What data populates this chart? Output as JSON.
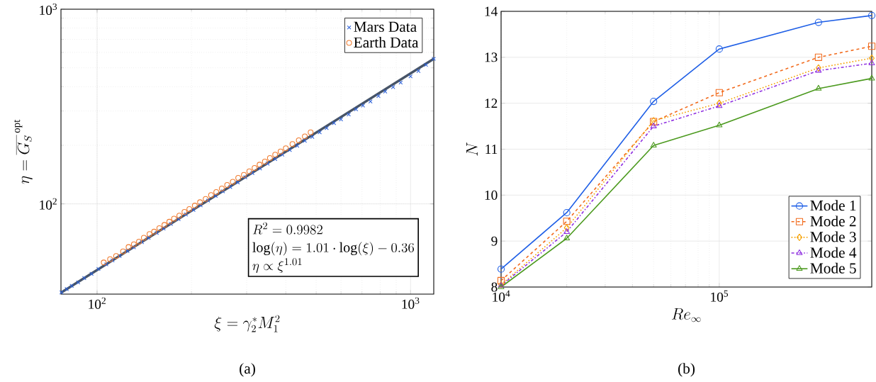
{
  "chart_data": [
    {
      "type": "scatter",
      "log": "xy",
      "grid": true,
      "legend": "top right",
      "xlabel": "\\xi = \\gamma_2^{*} M_1^2",
      "ylabel": "\\eta = \\overline{G_S}^{\\,\\mathrm{opt}}",
      "xlim": [
        76.7,
        1186
      ],
      "ylim": [
        34.4,
        1000
      ],
      "xticks": [
        {
          "value": 100,
          "label": "10$^{2}$"
        },
        {
          "value": 1000,
          "label": "10$^{3}$"
        }
      ],
      "yticks": [
        {
          "value": 100,
          "label": "10$^{2}$"
        },
        {
          "value": 1000,
          "label": "10$^{3}$"
        }
      ],
      "annotations": [
        "R^2 = 0.9982",
        "\\log(\\eta) = 1.01\\cdot\\log(\\xi) - 0.36",
        "\\eta \\propto \\xi^{1.01}",
        "(a)"
      ],
      "series": [
        {
          "name": "Mars Data",
          "type": "scatter",
          "marker": "cross",
          "color": "#2e62d9",
          "x": [
            77,
            80,
            83,
            87,
            91,
            96,
            101,
            107,
            112,
            118,
            125,
            131,
            139,
            146,
            155,
            163,
            172,
            182,
            192,
            203,
            214,
            226,
            239,
            252,
            266,
            281,
            297,
            313,
            331,
            350,
            370,
            390,
            412,
            435,
            460,
            486,
            513,
            540,
            570,
            600,
            635,
            670,
            705,
            745,
            790,
            830,
            880,
            930,
            1000,
            1060,
            1120,
            1186
          ],
          "values": [
            35.1,
            36.5,
            37.9,
            39.5,
            41.6,
            43.7,
            46.3,
            48.9,
            51.2,
            54.0,
            57.3,
            59.8,
            63.6,
            66.9,
            70.9,
            74.8,
            78.9,
            83.5,
            88.2,
            93.2,
            98.4,
            104,
            110,
            116,
            122,
            129,
            137,
            144,
            152,
            161,
            170,
            179,
            189,
            199,
            211,
            221,
            233,
            245,
            260,
            272,
            288,
            306,
            320,
            336,
            358,
            378,
            398,
            420,
            452,
            482,
            518,
            556
          ]
        },
        {
          "name": "Earth Data",
          "type": "scatter",
          "marker": "circle",
          "color": "#f07c30",
          "x": [
            105,
            110,
            115,
            121,
            126,
            131,
            136,
            141,
            147,
            152,
            158,
            164,
            170,
            176,
            183,
            190,
            197,
            205,
            213,
            222,
            231,
            240,
            250,
            260,
            271,
            282,
            294,
            306,
            318,
            330,
            343,
            356,
            370,
            385,
            400,
            420,
            440,
            460,
            480
          ],
          "values": [
            50,
            52,
            54,
            57,
            60,
            62,
            64,
            67,
            70,
            72,
            75,
            78,
            81,
            84,
            87,
            91,
            94,
            98,
            102,
            106,
            111,
            115,
            120,
            125,
            130,
            136,
            141,
            147,
            153,
            159,
            165,
            172,
            179,
            186,
            193,
            203,
            212,
            222,
            233
          ]
        },
        {
          "type": "line",
          "marker": "none",
          "color": "#475467",
          "x": [
            76.7,
            1186
          ],
          "values": [
            35.0,
            556
          ]
        }
      ]
    },
    {
      "type": "line",
      "log": "x",
      "grid": true,
      "legend": "bottom right",
      "xlabel": "Re_{\\infty}",
      "ylabel": "N",
      "x": [
        10000,
        20000,
        50000,
        100000,
        285000,
        500000
      ],
      "xlim": [
        10000,
        500000
      ],
      "ylim": [
        8,
        14
      ],
      "xticks": [
        {
          "value": 10000,
          "label": "10$^{4}$"
        },
        {
          "value": 100000,
          "label": "10$^{5}$"
        }
      ],
      "yticks": [
        8,
        9,
        10,
        11,
        12,
        13,
        14
      ],
      "annotations": [
        "(b)"
      ],
      "series": [
        {
          "name": "Mode 1",
          "color": "#1f5fe6",
          "marker": "circle",
          "line_style": "solid",
          "values": [
            8.39,
            9.62,
            12.04,
            13.18,
            13.76,
            13.91
          ]
        },
        {
          "name": "Mode 2",
          "color": "#f26b1d",
          "marker": "square",
          "line_style": "dashed",
          "values": [
            8.14,
            9.43,
            11.6,
            12.23,
            13.0,
            13.24
          ]
        },
        {
          "name": "Mode 3",
          "color": "#f5a000",
          "marker": "diamond",
          "line_style": "dotted",
          "values": [
            8.05,
            9.29,
            11.62,
            12.0,
            12.77,
            12.98
          ]
        },
        {
          "name": "Mode 4",
          "color": "#8f2fe0",
          "marker": "triangle",
          "line_style": "dashdot",
          "values": [
            8.03,
            9.2,
            11.5,
            11.94,
            12.71,
            12.87
          ]
        },
        {
          "name": "Mode 5",
          "color": "#4c9a1f",
          "marker": "triangle",
          "line_style": "solid",
          "values": [
            8.0,
            9.06,
            11.08,
            11.52,
            12.32,
            12.54
          ]
        }
      ]
    }
  ]
}
